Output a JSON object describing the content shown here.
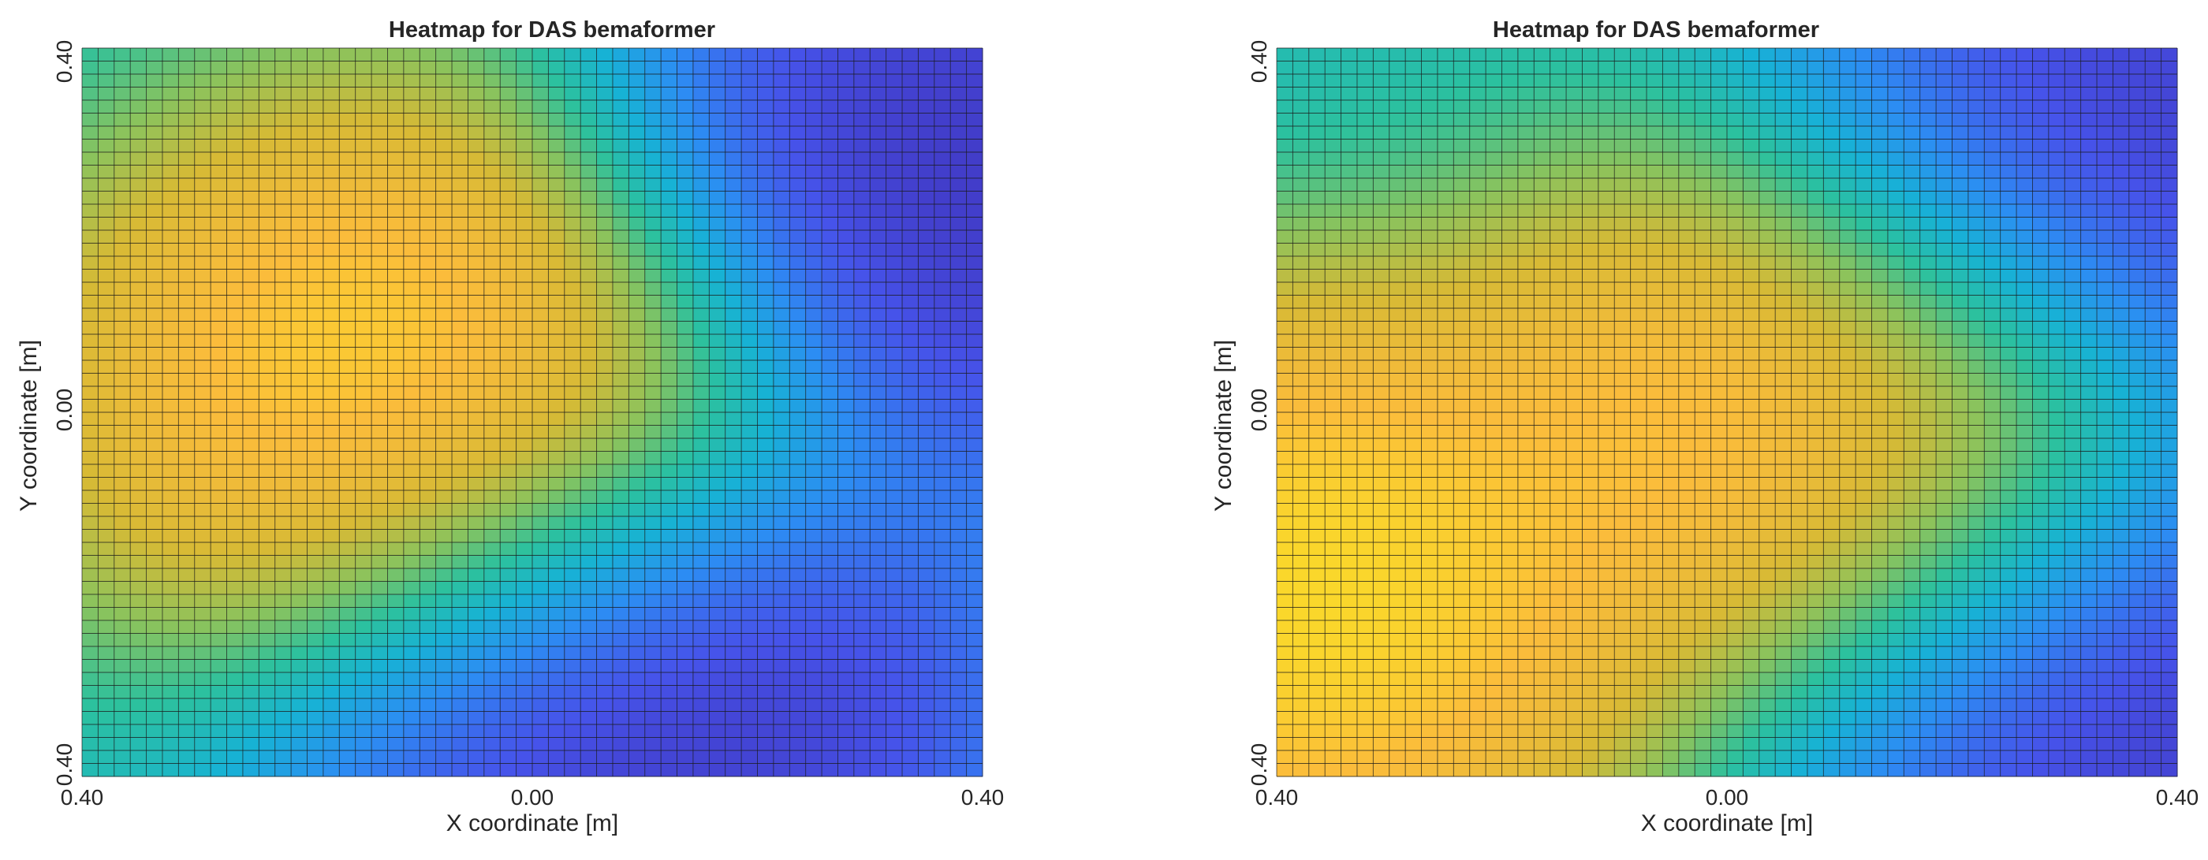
{
  "chart_data": [
    {
      "type": "heatmap",
      "title": "Heatmap for DAS bemaformer",
      "xlabel": "X coordinate [m]",
      "ylabel": "Y coordinate [m]",
      "xtick_labels": [
        "0.40",
        "0.00",
        "0.40"
      ],
      "ytick_labels": [
        "0.40",
        "0.00",
        "0.40"
      ],
      "xlim": [
        -0.4,
        0.4
      ],
      "ylim": [
        -0.4,
        0.4
      ],
      "grid_size": [
        56,
        56
      ],
      "colormap": "parula",
      "colormap_stops": [
        "#3e26a8",
        "#4653ea",
        "#2c8df3",
        "#17b2d5",
        "#2cc19e",
        "#8ac35d",
        "#d7ba35",
        "#fbbc3b",
        "#f9fb15"
      ],
      "grid": true,
      "sources": [
        {
          "x": -0.1,
          "y": 0.02,
          "level": 1.0
        },
        {
          "x": 0.38,
          "y": 0.25,
          "level": 0.0
        },
        {
          "x": 0.1,
          "y": -0.32,
          "level": 0.0
        }
      ]
    },
    {
      "type": "heatmap",
      "title": "Heatmap for DAS bemaformer",
      "xlabel": "X coordinate [m]",
      "ylabel": "Y coordinate [m]",
      "xtick_labels": [
        "0.40",
        "0.00",
        "0.40"
      ],
      "ytick_labels": [
        "0.40",
        "0.00",
        "0.40"
      ],
      "xlim": [
        -0.4,
        0.4
      ],
      "ylim": [
        -0.4,
        0.4
      ],
      "grid_size": [
        56,
        56
      ],
      "colormap": "parula",
      "colormap_stops": [
        "#3e26a8",
        "#4653ea",
        "#2c8df3",
        "#17b2d5",
        "#2cc19e",
        "#8ac35d",
        "#d7ba35",
        "#fbbc3b",
        "#f9fb15"
      ],
      "grid": true,
      "sources": [
        {
          "x": 0.1,
          "y": -0.02,
          "level": 1.0
        },
        {
          "x": -0.38,
          "y": -0.2,
          "level": 1.0
        },
        {
          "x": 0.35,
          "y": 0.25,
          "level": 0.0
        },
        {
          "x": 0.35,
          "y": -0.3,
          "level": 0.0
        }
      ]
    }
  ]
}
